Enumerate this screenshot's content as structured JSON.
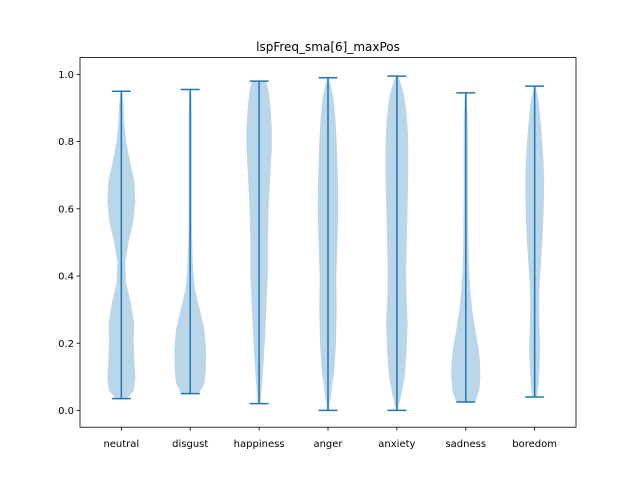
{
  "chart_data": {
    "type": "violin",
    "title": "lspFreq_sma[6]_maxPos",
    "xlabel": "",
    "ylabel": "",
    "ylim": [
      -0.05,
      1.05
    ],
    "yticks": [
      "0.0",
      "0.2",
      "0.4",
      "0.6",
      "0.8",
      "1.0"
    ],
    "categories": [
      "neutral",
      "disgust",
      "happiness",
      "anger",
      "anxiety",
      "sadness",
      "boredom"
    ],
    "colors": {
      "body": "#1f77b4",
      "body_alpha": 0.3,
      "lines": "#1f77b4"
    },
    "violins": [
      {
        "min": 0.035,
        "max": 0.95,
        "profile": [
          [
            0.035,
            0.35
          ],
          [
            0.06,
            0.8
          ],
          [
            0.1,
            0.88
          ],
          [
            0.15,
            0.82
          ],
          [
            0.2,
            0.78
          ],
          [
            0.26,
            0.8
          ],
          [
            0.32,
            0.6
          ],
          [
            0.38,
            0.3
          ],
          [
            0.44,
            0.25
          ],
          [
            0.5,
            0.45
          ],
          [
            0.56,
            0.75
          ],
          [
            0.62,
            0.88
          ],
          [
            0.68,
            0.82
          ],
          [
            0.74,
            0.55
          ],
          [
            0.8,
            0.3
          ],
          [
            0.86,
            0.18
          ],
          [
            0.92,
            0.12
          ],
          [
            0.95,
            0.05
          ]
        ]
      },
      {
        "min": 0.05,
        "max": 0.955,
        "profile": [
          [
            0.05,
            0.55
          ],
          [
            0.08,
            0.9
          ],
          [
            0.12,
            0.98
          ],
          [
            0.18,
            1.0
          ],
          [
            0.24,
            0.9
          ],
          [
            0.3,
            0.6
          ],
          [
            0.36,
            0.3
          ],
          [
            0.42,
            0.18
          ],
          [
            0.5,
            0.12
          ],
          [
            0.6,
            0.1
          ],
          [
            0.7,
            0.1
          ],
          [
            0.8,
            0.1
          ],
          [
            0.88,
            0.1
          ],
          [
            0.93,
            0.08
          ],
          [
            0.955,
            0.05
          ]
        ]
      },
      {
        "min": 0.02,
        "max": 0.98,
        "profile": [
          [
            0.02,
            0.1
          ],
          [
            0.06,
            0.15
          ],
          [
            0.1,
            0.22
          ],
          [
            0.16,
            0.3
          ],
          [
            0.22,
            0.38
          ],
          [
            0.3,
            0.45
          ],
          [
            0.4,
            0.55
          ],
          [
            0.5,
            0.55
          ],
          [
            0.6,
            0.6
          ],
          [
            0.7,
            0.7
          ],
          [
            0.78,
            0.8
          ],
          [
            0.84,
            0.8
          ],
          [
            0.9,
            0.72
          ],
          [
            0.95,
            0.6
          ],
          [
            0.98,
            0.45
          ]
        ]
      },
      {
        "min": 0.0,
        "max": 0.99,
        "profile": [
          [
            0.0,
            0.05
          ],
          [
            0.05,
            0.2
          ],
          [
            0.12,
            0.4
          ],
          [
            0.2,
            0.5
          ],
          [
            0.3,
            0.55
          ],
          [
            0.4,
            0.52
          ],
          [
            0.5,
            0.6
          ],
          [
            0.6,
            0.65
          ],
          [
            0.7,
            0.62
          ],
          [
            0.8,
            0.55
          ],
          [
            0.88,
            0.45
          ],
          [
            0.94,
            0.3
          ],
          [
            0.99,
            0.05
          ]
        ]
      },
      {
        "min": 0.0,
        "max": 0.995,
        "profile": [
          [
            0.0,
            0.05
          ],
          [
            0.04,
            0.25
          ],
          [
            0.1,
            0.5
          ],
          [
            0.18,
            0.62
          ],
          [
            0.26,
            0.68
          ],
          [
            0.34,
            0.6
          ],
          [
            0.42,
            0.58
          ],
          [
            0.5,
            0.62
          ],
          [
            0.58,
            0.66
          ],
          [
            0.66,
            0.7
          ],
          [
            0.74,
            0.72
          ],
          [
            0.82,
            0.7
          ],
          [
            0.88,
            0.62
          ],
          [
            0.94,
            0.45
          ],
          [
            0.995,
            0.1
          ]
        ]
      },
      {
        "min": 0.025,
        "max": 0.945,
        "profile": [
          [
            0.025,
            0.6
          ],
          [
            0.06,
            0.85
          ],
          [
            0.1,
            0.92
          ],
          [
            0.14,
            0.9
          ],
          [
            0.18,
            0.82
          ],
          [
            0.24,
            0.6
          ],
          [
            0.3,
            0.4
          ],
          [
            0.36,
            0.28
          ],
          [
            0.42,
            0.2
          ],
          [
            0.5,
            0.16
          ],
          [
            0.6,
            0.14
          ],
          [
            0.7,
            0.13
          ],
          [
            0.8,
            0.13
          ],
          [
            0.88,
            0.12
          ],
          [
            0.945,
            0.05
          ]
        ]
      },
      {
        "min": 0.04,
        "max": 0.965,
        "profile": [
          [
            0.04,
            0.15
          ],
          [
            0.08,
            0.25
          ],
          [
            0.14,
            0.32
          ],
          [
            0.2,
            0.34
          ],
          [
            0.26,
            0.3
          ],
          [
            0.32,
            0.28
          ],
          [
            0.38,
            0.32
          ],
          [
            0.44,
            0.4
          ],
          [
            0.5,
            0.48
          ],
          [
            0.56,
            0.54
          ],
          [
            0.62,
            0.58
          ],
          [
            0.68,
            0.6
          ],
          [
            0.74,
            0.56
          ],
          [
            0.8,
            0.48
          ],
          [
            0.86,
            0.38
          ],
          [
            0.92,
            0.25
          ],
          [
            0.965,
            0.05
          ]
        ]
      }
    ]
  }
}
